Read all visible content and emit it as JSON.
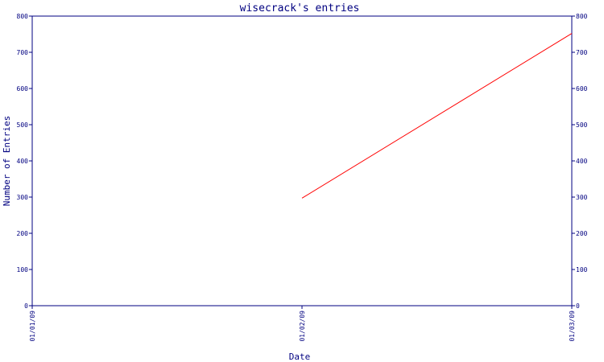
{
  "chart_data": {
    "type": "line",
    "title": "wisecrack's entries",
    "xlabel": "Date",
    "ylabel": "Number of Entries",
    "x_ticks": [
      "01/01/09",
      "01/02/09",
      "01/03/09"
    ],
    "y_ticks": [
      "0",
      "100",
      "200",
      "300",
      "400",
      "500",
      "600",
      "700",
      "800"
    ],
    "ylim": [
      0,
      800
    ],
    "grid": false,
    "series": [
      {
        "x": [
          "01/02/09",
          "01/03/09"
        ],
        "values": [
          297,
          752
        ],
        "color": "#ff0000"
      }
    ],
    "colors": {
      "axis": "#000080",
      "text": "#000080",
      "line": "#ff0000"
    }
  }
}
